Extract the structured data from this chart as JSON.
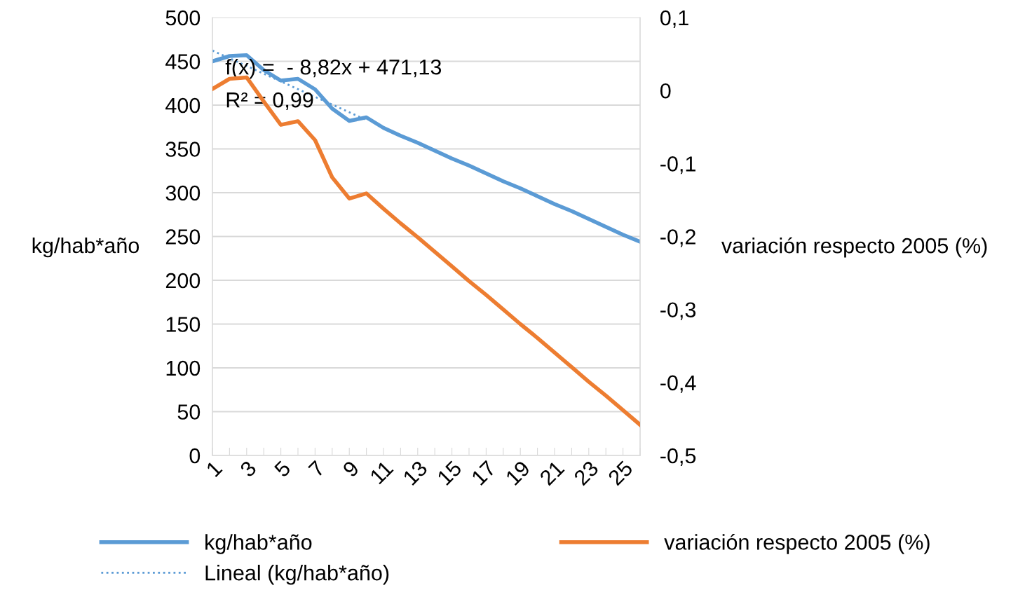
{
  "chart_data": {
    "type": "line",
    "categories": [
      "1",
      null,
      "3",
      null,
      "5",
      null,
      "7",
      null,
      "9",
      null,
      "11",
      null,
      "13",
      null,
      "15",
      null,
      "17",
      null,
      "19",
      null,
      "21",
      null,
      "23",
      null,
      "25",
      null
    ],
    "ylabel": "kg/hab*año",
    "y2label": "variación respecto 2005 (%)",
    "ylim": [
      0,
      500
    ],
    "yticks": [
      0,
      50,
      100,
      150,
      200,
      250,
      300,
      350,
      400,
      450,
      500
    ],
    "y2lim": [
      -0.5,
      0.1
    ],
    "y2ticks": [
      {
        "value": -0.5,
        "label": "-0,5"
      },
      {
        "value": -0.4,
        "label": "-0,4"
      },
      {
        "value": -0.3,
        "label": "-0,3"
      },
      {
        "value": -0.2,
        "label": "-0,2"
      },
      {
        "value": -0.1,
        "label": "-0,1"
      },
      {
        "value": 0,
        "label": "0"
      },
      {
        "value": 0.1,
        "label": "0,1"
      }
    ],
    "grid": "y",
    "legend": "bottom",
    "marker": "none",
    "annotations": [
      "f(x) =  - 8,82x + 471,13",
      "R² = 0,99"
    ],
    "series": [
      {
        "name": "kg/hab*año",
        "color": "#5b9bd5",
        "line_style": "solid",
        "values": [
          450,
          456,
          457,
          440,
          428,
          430,
          418,
          396,
          382,
          386,
          374,
          365,
          357,
          348,
          339,
          331,
          322,
          313,
          305,
          296,
          287,
          279,
          270,
          261,
          252,
          244
        ]
      },
      {
        "name": "Lineal (kg/hab*año)",
        "color": "#5b9bd5",
        "line_style": "dotted",
        "values": [
          462.3,
          453.5,
          444.7,
          435.9,
          427.0,
          418.2,
          409.4,
          400.6,
          391.8,
          383.0,
          null,
          null,
          null,
          null,
          null,
          null,
          null,
          null,
          null,
          null,
          null,
          null,
          null,
          null,
          null,
          null
        ]
      },
      {
        "name": "variación respecto 2005 (%)",
        "color": "#ed7d31",
        "line_style": "solid",
        "axis": "y2",
        "values": [
          0.002,
          0.016,
          0.018,
          -0.015,
          -0.047,
          -0.042,
          -0.068,
          -0.119,
          -0.148,
          -0.141,
          -0.162,
          -0.182,
          -0.201,
          -0.221,
          -0.241,
          -0.261,
          -0.28,
          -0.3,
          -0.32,
          -0.339,
          -0.359,
          -0.379,
          -0.399,
          -0.418,
          -0.438,
          -0.458
        ]
      }
    ]
  }
}
